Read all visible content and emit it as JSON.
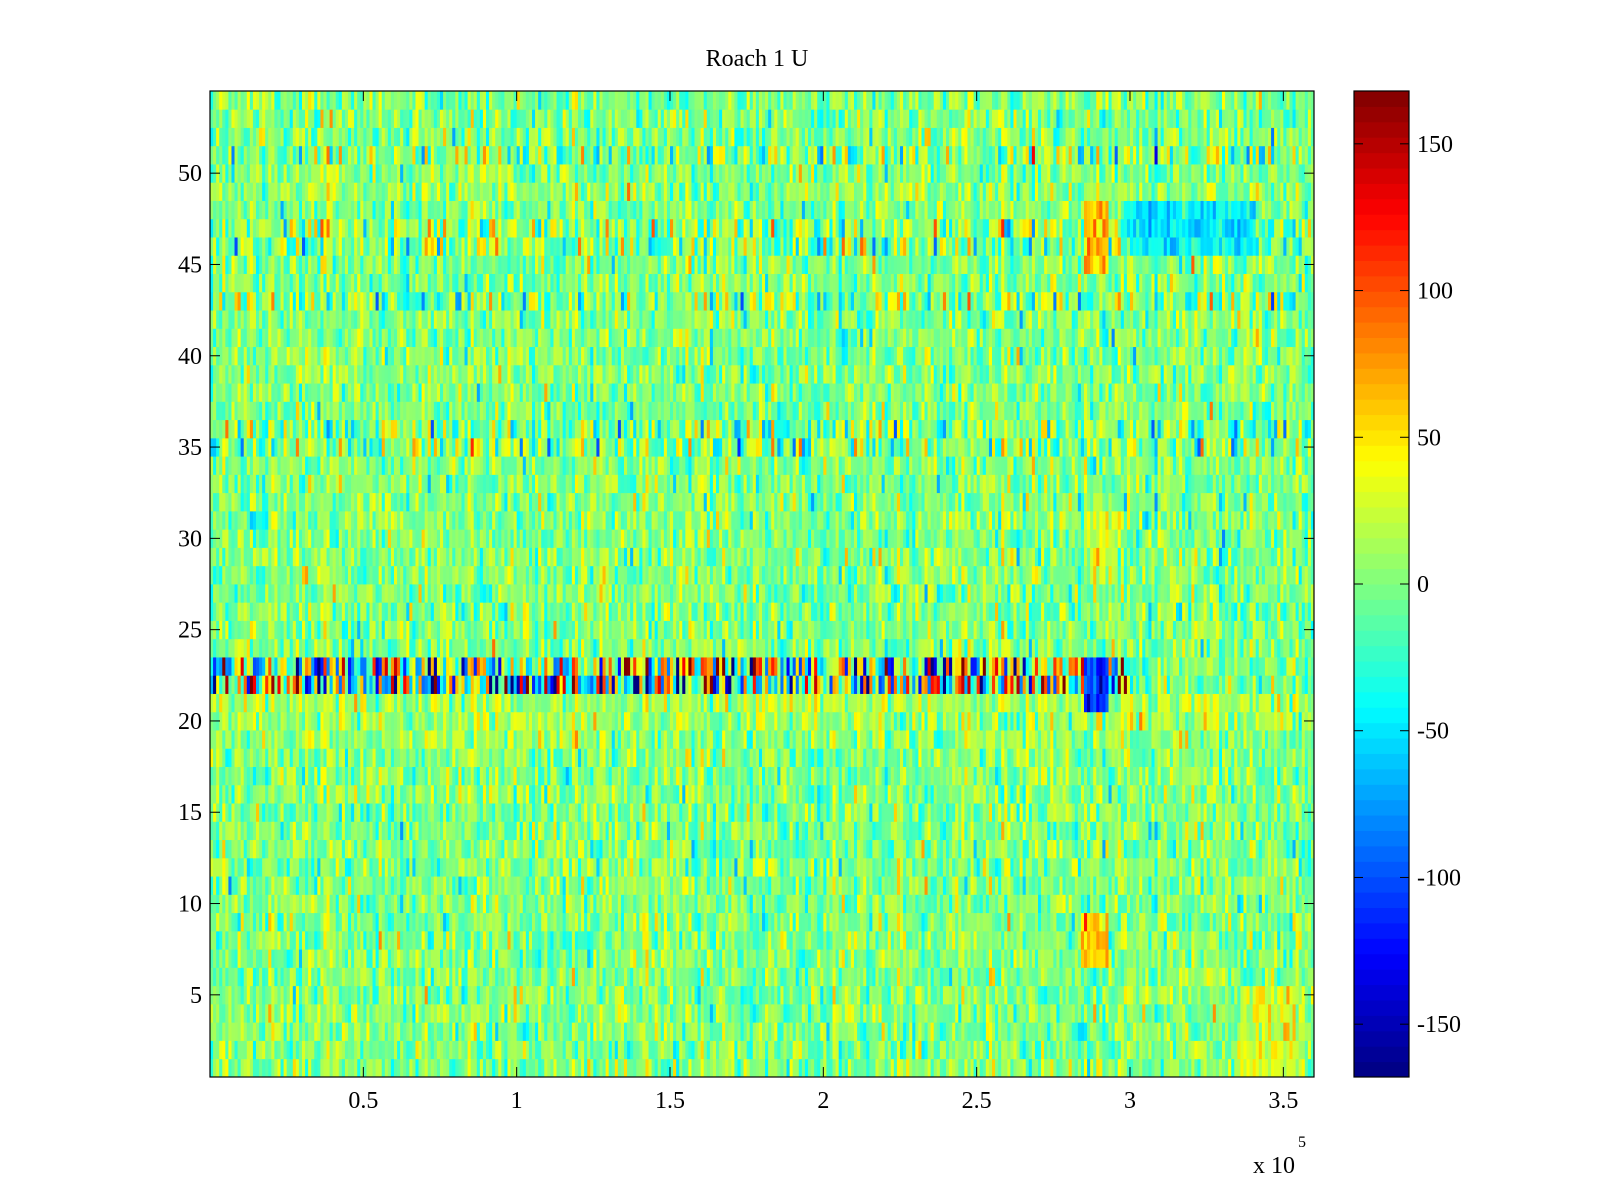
{
  "chart_data": {
    "type": "heatmap",
    "title": "Roach 1 U",
    "xlabel": "",
    "ylabel": "",
    "x_exponent_label": {
      "base": "x 10",
      "exponent": "5"
    },
    "xlim": [
      0,
      360000
    ],
    "ylim": [
      0.5,
      54.5
    ],
    "rows": 54,
    "columns": 360,
    "x_ticks": [
      {
        "value": 50000,
        "label": "0.5"
      },
      {
        "value": 100000,
        "label": "1"
      },
      {
        "value": 150000,
        "label": "1.5"
      },
      {
        "value": 200000,
        "label": "2"
      },
      {
        "value": 250000,
        "label": "2.5"
      },
      {
        "value": 300000,
        "label": "3"
      },
      {
        "value": 350000,
        "label": "3.5"
      }
    ],
    "y_ticks": [
      {
        "value": 5,
        "label": "5"
      },
      {
        "value": 10,
        "label": "10"
      },
      {
        "value": 15,
        "label": "15"
      },
      {
        "value": 20,
        "label": "20"
      },
      {
        "value": 25,
        "label": "25"
      },
      {
        "value": 30,
        "label": "30"
      },
      {
        "value": 35,
        "label": "35"
      },
      {
        "value": 40,
        "label": "40"
      },
      {
        "value": 45,
        "label": "45"
      },
      {
        "value": 50,
        "label": "50"
      }
    ],
    "colorbar": {
      "colormap": "jet",
      "range": [
        -168,
        168
      ],
      "ticks": [
        {
          "value": 150,
          "label": "150"
        },
        {
          "value": 100,
          "label": "100"
        },
        {
          "value": 50,
          "label": "50"
        },
        {
          "value": 0,
          "label": "0"
        },
        {
          "value": -50,
          "label": "-50"
        },
        {
          "value": -100,
          "label": "-100"
        },
        {
          "value": -150,
          "label": "-150"
        }
      ]
    },
    "noise_std": 22,
    "features": {
      "row_offsets": [
        {
          "rows": [
            20,
            21
          ],
          "offset": 12
        },
        {
          "rows": [
            19
          ],
          "offset": 8
        },
        {
          "rows": [
            47,
            49
          ],
          "offset": 5
        }
      ],
      "high_variance_rows": [
        {
          "rows": [
            22,
            23
          ],
          "std": 95,
          "columns": [
            0,
            300
          ]
        },
        {
          "rows": [
            35,
            36,
            43,
            46,
            47,
            51
          ],
          "std": 36,
          "columns": [
            0,
            360
          ]
        }
      ],
      "patches": [
        {
          "rows": [
            21,
            23
          ],
          "columns": [
            285,
            292
          ],
          "mean": -115
        },
        {
          "rows": [
            45,
            48
          ],
          "columns": [
            285,
            292
          ],
          "mean": 68
        },
        {
          "rows": [
            46,
            48
          ],
          "columns": [
            298,
            340
          ],
          "mean": -45
        },
        {
          "rows": [
            7,
            9
          ],
          "columns": [
            284,
            292
          ],
          "mean": 62
        },
        {
          "rows": [
            28,
            31
          ],
          "columns": [
            285,
            295
          ],
          "mean": 28
        },
        {
          "rows": [
            1,
            5
          ],
          "columns": [
            336,
            356
          ],
          "mean": 28
        }
      ]
    }
  }
}
